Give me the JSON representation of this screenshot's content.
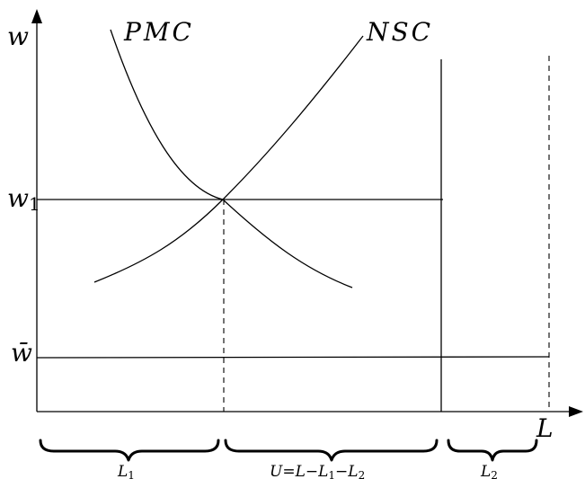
{
  "diagram": {
    "axes": {
      "y_label": "w",
      "x_label": "L"
    },
    "curves": {
      "pmc_label": "PMC",
      "nsc_label": "NSC"
    },
    "wage_levels": {
      "w1_label": "w",
      "w1_subscript": "1",
      "wbar_label": "w̄"
    },
    "segments": {
      "l1_label": "L",
      "l1_subscript": "1",
      "u_label_prefix": "U=L−L",
      "u_label_sub1": "1",
      "u_label_mid": "−L",
      "u_label_sub2": "2",
      "l2_label": "L",
      "l2_subscript": "2"
    }
  }
}
